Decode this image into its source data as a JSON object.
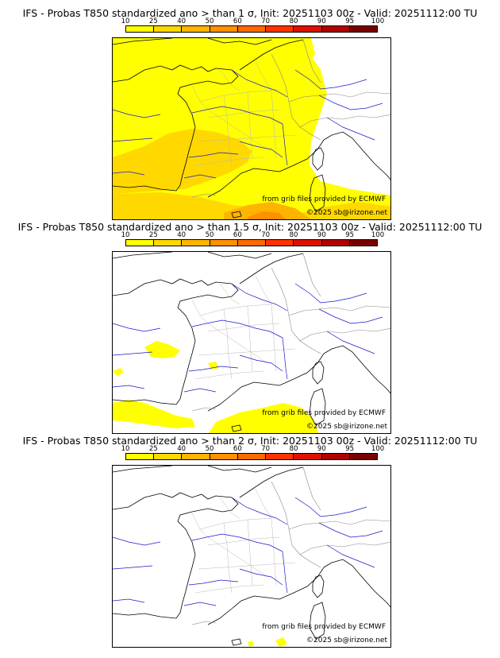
{
  "panels": [
    {
      "title": "IFS - Probas T850  standardized ano > than 1 σ, Init: 20251103 00z - Valid: 20251112:00 TU",
      "threshold": "1 σ",
      "source_credit": "from grib files provided by ECMWF",
      "copyright": "©2025 sb@irizone.net"
    },
    {
      "title": "IFS - Probas T850  standardized ano > than 1.5 σ, Init: 20251103 00z - Valid: 20251112:00 TU",
      "threshold": "1.5 σ",
      "source_credit": "from grib files provided by ECMWF",
      "copyright": "©2025 sb@irizone.net"
    },
    {
      "title": "IFS - Probas T850  standardized ano > than 2 σ, Init: 20251103 00z - Valid: 20251112:00 TU",
      "threshold": "2 σ",
      "source_credit": "from grib files provided by ECMWF",
      "copyright": "©2025 sb@irizone.net"
    }
  ],
  "colorbar": {
    "ticks": [
      "10",
      "25",
      "40",
      "50",
      "60",
      "70",
      "80",
      "90",
      "95",
      "100"
    ],
    "colors": [
      "#ffff00",
      "#ffd800",
      "#ffb400",
      "#ff9000",
      "#ff6a00",
      "#ff3300",
      "#dd1100",
      "#b00000",
      "#7a0000"
    ]
  },
  "colors": {
    "coastline": "#000000",
    "rivers": "#0000cc",
    "borders": "#999999",
    "prob_10_25": "#ffff00",
    "prob_25_40": "#ffd800",
    "prob_40_50": "#ffb400"
  }
}
